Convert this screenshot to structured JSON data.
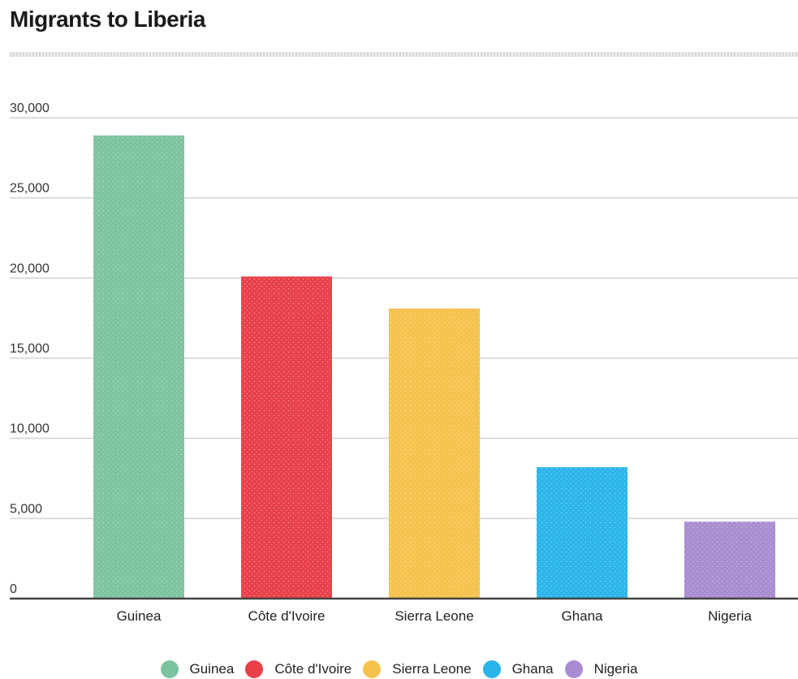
{
  "chart_data": {
    "type": "bar",
    "title": "Migrants to Liberia",
    "xlabel": "",
    "ylabel": "",
    "categories": [
      "Guinea",
      "Côte d'Ivoire",
      "Sierra Leone",
      "Ghana",
      "Nigeria"
    ],
    "values": [
      28900,
      20100,
      18100,
      8200,
      4800
    ],
    "colors": [
      "#7cc4a0",
      "#e8404a",
      "#f5c24c",
      "#2ab4ea",
      "#a98cd0"
    ],
    "ylim": [
      0,
      30000
    ],
    "yticks": [
      0,
      5000,
      10000,
      15000,
      20000,
      25000,
      30000
    ],
    "ytick_labels": [
      "0",
      "5,000",
      "10,000",
      "15,000",
      "20,000",
      "25,000",
      "30,000"
    ],
    "grid": true,
    "legend_placement": "bottom-center",
    "legend": [
      "Guinea",
      "Côte d'Ivoire",
      "Sierra Leone",
      "Ghana",
      "Nigeria"
    ]
  }
}
